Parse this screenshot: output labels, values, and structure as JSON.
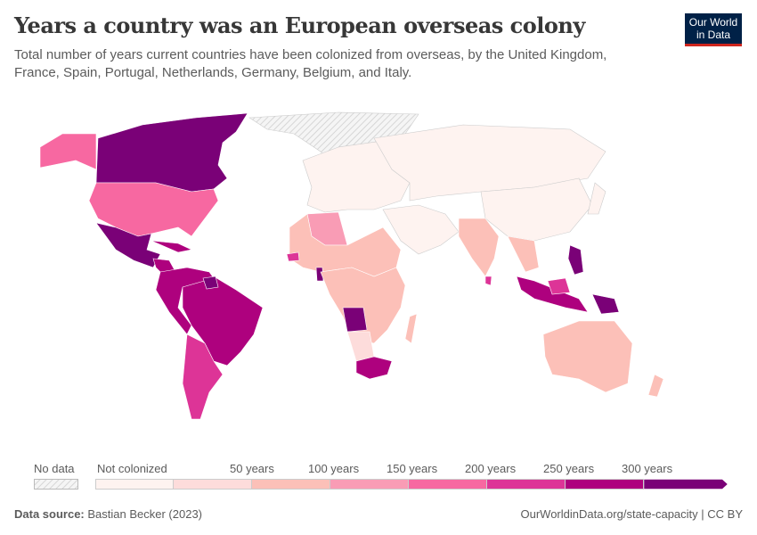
{
  "header": {
    "title": "Years a country was an European overseas colony",
    "subtitle": "Total number of years current countries have been colonized from overseas, by the United Kingdom, France, Spain, Portugal, Netherlands, Germany, Belgium, and Italy.",
    "logo": "Our World in Data"
  },
  "legend": {
    "no_data_label": "No data",
    "no_data_color": "#e0e0e0",
    "bins": [
      {
        "label": "Not colonized",
        "color": "#fef3f0"
      },
      {
        "label": "",
        "color": "#fddcdb"
      },
      {
        "label": "50 years",
        "color": "#fcc0b8"
      },
      {
        "label": "100 years",
        "color": "#f99cb5"
      },
      {
        "label": "150 years",
        "color": "#f768a1"
      },
      {
        "label": "200 years",
        "color": "#dd3497"
      },
      {
        "label": "250 years",
        "color": "#ae017e"
      },
      {
        "label": "300 years",
        "color": "#7a0177"
      }
    ]
  },
  "footer": {
    "source_label": "Data source:",
    "source": "Bastian Becker (2023)",
    "url": "OurWorldinData.org/state-capacity | CC BY"
  }
}
